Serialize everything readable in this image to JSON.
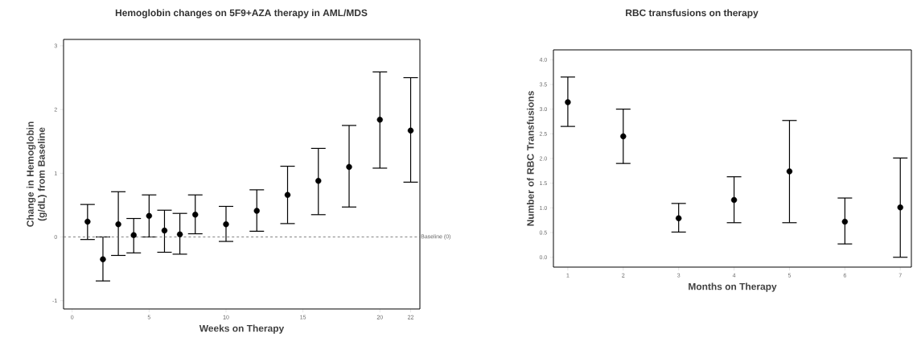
{
  "chart_data": [
    {
      "type": "scatter",
      "title": "Hemoglobin changes on 5F9+AZA therapy in AML/MDS",
      "xlabel": "Weeks on Therapy",
      "ylabel": "Change in Hemoglobin (g/dL) from Baseline",
      "x": [
        1,
        2,
        3,
        4,
        5,
        6,
        7,
        8,
        10,
        12,
        14,
        16,
        18,
        20,
        22
      ],
      "series": [
        {
          "color": "#000000",
          "values": [
            0.24,
            -0.35,
            0.2,
            0.03,
            0.33,
            0.1,
            0.04,
            0.35,
            0.2,
            0.41,
            0.66,
            0.88,
            1.1,
            1.84,
            1.67
          ],
          "errors": [
            [
              -0.04,
              0.51
            ],
            [
              -0.69,
              0
            ],
            [
              -0.29,
              0.71
            ],
            [
              -0.25,
              0.29
            ],
            [
              0,
              0.66
            ],
            [
              -0.24,
              0.42
            ],
            [
              -0.27,
              0.37
            ],
            [
              0.05,
              0.66
            ],
            [
              -0.07,
              0.48
            ],
            [
              0.09,
              0.74
            ],
            [
              0.21,
              1.11
            ],
            [
              0.35,
              1.39
            ],
            [
              0.47,
              1.75
            ],
            [
              1.08,
              2.59
            ],
            [
              0.86,
              2.5
            ]
          ]
        }
      ],
      "marker": "circle",
      "xlim": [
        -0.56,
        22.6
      ],
      "ylim": [
        -1.13,
        3.1
      ],
      "xticks": [
        0,
        5,
        10,
        15,
        20,
        22
      ],
      "yticks": [
        -1,
        0,
        1,
        2,
        3
      ],
      "ref_lines": [
        {
          "axis": "y",
          "value": 0,
          "label": "Baseline (0)",
          "line_style": "dashed"
        }
      ]
    },
    {
      "type": "scatter",
      "title": "RBC transfusions on therapy",
      "xlabel": "Months on Therapy",
      "ylabel": "Number of RBC Transfusions",
      "x": [
        1,
        2,
        3,
        4,
        5,
        6,
        7
      ],
      "series": [
        {
          "color": "#000000",
          "values": [
            3.14,
            2.45,
            0.79,
            1.16,
            1.74,
            0.72,
            1.01
          ],
          "errors": [
            [
              2.65,
              3.65
            ],
            [
              1.9,
              3.0
            ],
            [
              0.51,
              1.09
            ],
            [
              0.7,
              1.63
            ],
            [
              0.7,
              2.77
            ],
            [
              0.27,
              1.2
            ],
            [
              0.0,
              2.01
            ]
          ]
        }
      ],
      "marker": "circle",
      "xlim": [
        0.74,
        7.2
      ],
      "ylim": [
        -0.2,
        4.2
      ],
      "xticks": [
        1,
        2,
        3,
        4,
        5,
        6,
        7
      ],
      "yticks": [
        {
          "value": 0,
          "label": "0.0"
        },
        {
          "value": 0.5,
          "label": "0.5"
        },
        {
          "value": 1,
          "label": "1.0"
        },
        {
          "value": 1.5,
          "label": "1.5"
        },
        {
          "value": 2,
          "label": "2.0"
        },
        {
          "value": 2.5,
          "label": "2.5"
        },
        {
          "value": 3,
          "label": "3.0"
        },
        {
          "value": 3.5,
          "label": "3.5"
        },
        {
          "value": 4,
          "label": "4.0"
        }
      ]
    }
  ]
}
